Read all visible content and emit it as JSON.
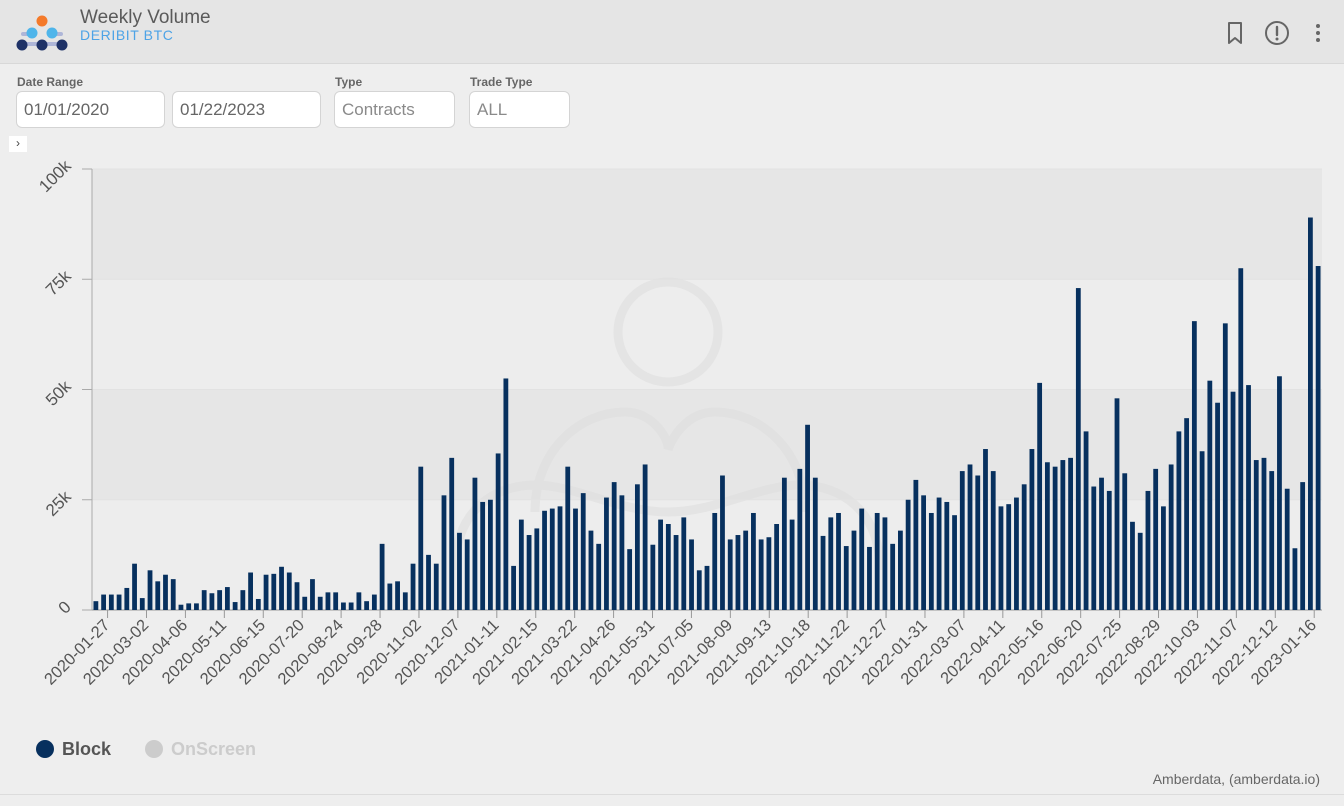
{
  "header": {
    "title": "Weekly Volume",
    "subtitle": "DERIBIT BTC",
    "icons": [
      "bookmark-icon",
      "info-icon",
      "more-vertical-icon"
    ]
  },
  "filters": {
    "date_range_label": "Date Range",
    "start_date": "01/01/2020",
    "end_date": "01/22/2023",
    "type_label": "Type",
    "type_placeholder": "Contracts",
    "trade_type_label": "Trade Type",
    "trade_type_placeholder": "ALL"
  },
  "expander": "›",
  "legend": [
    {
      "label": "Block",
      "color": "#07305e",
      "active": true
    },
    {
      "label": "OnScreen",
      "color": "#cccccc",
      "active": false
    }
  ],
  "credit": "Amberdata, (amberdata.io)",
  "chart_data": {
    "type": "bar",
    "title": "",
    "xlabel": "",
    "ylabel": "",
    "ylim": [
      0,
      100000
    ],
    "y_ticks": [
      0,
      25000,
      50000,
      75000,
      100000
    ],
    "y_tick_labels": [
      "0",
      "25k",
      "50k",
      "75k",
      "100k"
    ],
    "x_tick_labels": [
      "2020-01-27",
      "2020-03-02",
      "2020-04-06",
      "2020-05-11",
      "2020-06-15",
      "2020-07-20",
      "2020-08-24",
      "2020-09-28",
      "2020-11-02",
      "2020-12-07",
      "2021-01-11",
      "2021-02-15",
      "2021-03-22",
      "2021-04-26",
      "2021-05-31",
      "2021-07-05",
      "2021-08-09",
      "2021-09-13",
      "2021-10-18",
      "2021-11-22",
      "2021-12-27",
      "2022-01-31",
      "2022-03-07",
      "2022-04-11",
      "2022-05-16",
      "2022-06-20",
      "2022-07-25",
      "2022-08-29",
      "2022-10-03",
      "2022-11-07",
      "2022-12-12",
      "2023-01-16"
    ],
    "grid": true,
    "legend_position": "bottom-left",
    "series": [
      {
        "name": "Block",
        "color": "#07305e",
        "values": [
          2000,
          3500,
          3500,
          3500,
          5000,
          10500,
          2700,
          9000,
          6500,
          8000,
          7000,
          1200,
          1500,
          1500,
          4500,
          3800,
          4500,
          5200,
          1800,
          4500,
          8500,
          2500,
          8000,
          8200,
          9800,
          8500,
          6300,
          3000,
          7000,
          3000,
          4000,
          4000,
          1700,
          1700,
          4000,
          2000,
          3500,
          15000,
          6000,
          6500,
          4000,
          10500,
          32500,
          12500,
          10500,
          26000,
          34500,
          17500,
          16000,
          30000,
          24500,
          25000,
          35500,
          52500,
          10000,
          20500,
          17000,
          18500,
          22500,
          23000,
          23500,
          32500,
          23000,
          26500,
          18000,
          15000,
          25500,
          29000,
          26000,
          13800,
          28500,
          33000,
          14800,
          20500,
          19500,
          17000,
          21000,
          16000,
          9000,
          10000,
          22000,
          30500,
          16000,
          17000,
          18000,
          22000,
          16000,
          16500,
          19500,
          30000,
          20500,
          32000,
          42000,
          30000,
          16800,
          21000,
          22000,
          14500,
          18000,
          23000,
          14300,
          22000,
          21000,
          15000,
          18000,
          25000,
          29500,
          26000,
          22000,
          25500,
          24500,
          21500,
          31500,
          33000,
          30500,
          36500,
          31500,
          23500,
          24000,
          25500,
          28500,
          36500,
          51500,
          33500,
          32500,
          34000,
          34500,
          73000,
          40500,
          28000,
          30000,
          27000,
          48000,
          31000,
          20000,
          17500,
          27000,
          32000,
          23500,
          33000,
          40500,
          43500,
          65500,
          36000,
          52000,
          47000,
          65000,
          49500,
          77500,
          51000,
          34000,
          34500,
          31500,
          53000,
          27500,
          14000,
          29000,
          89000,
          78000
        ],
        "date_range": [
          "2020-01-13",
          "2023-01-23"
        ]
      },
      {
        "name": "OnScreen",
        "color": "#cccccc",
        "hidden": true
      }
    ]
  }
}
